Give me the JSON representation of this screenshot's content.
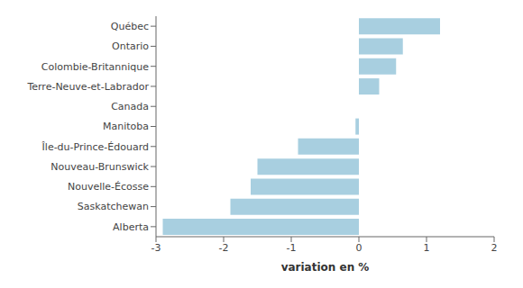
{
  "chart_data": {
    "type": "bar",
    "orientation": "horizontal",
    "categories": [
      "Alberta",
      "Saskatchewan",
      "Nouvelle-Écosse",
      "Nouveau-Brunswick",
      "Île-du-Prince-Édouard",
      "Manitoba",
      "Canada",
      "Terre-Neuve-et-Labrador",
      "Colombie-Britannique",
      "Ontario",
      "Québec"
    ],
    "values": [
      -2.9,
      -1.9,
      -1.6,
      -1.5,
      -0.9,
      -0.05,
      0.0,
      0.3,
      0.55,
      0.65,
      1.2
    ],
    "color": "#a8cfe0",
    "xlim": [
      -3,
      2
    ],
    "xticks": [
      -3,
      -2,
      -1,
      0,
      1,
      2
    ],
    "xlabel": "variation en %",
    "grid": false
  }
}
